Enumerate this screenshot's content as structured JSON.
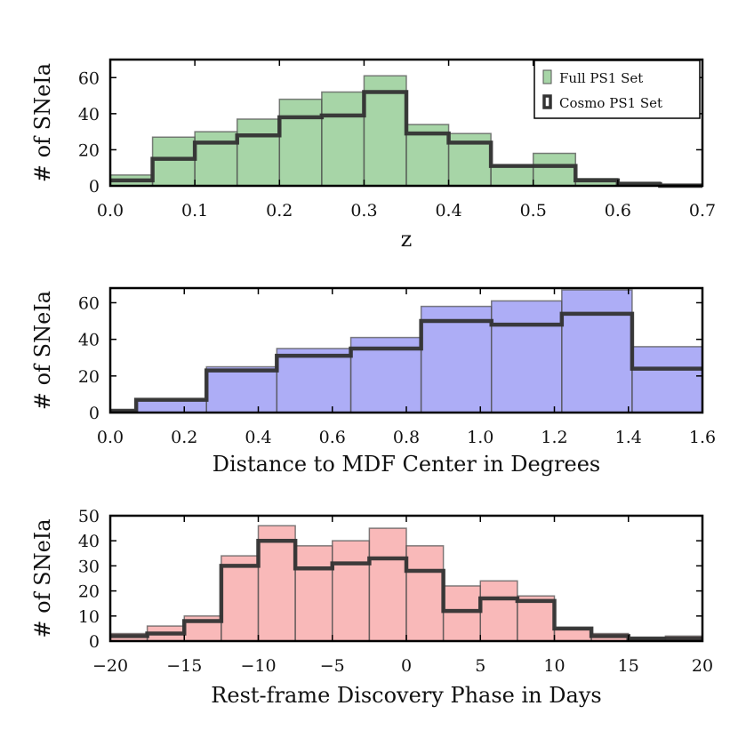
{
  "chart_data": [
    {
      "type": "bar",
      "subtype": "histogram",
      "xlabel": "z",
      "ylabel": "# of SNeIa",
      "xlim": [
        0.0,
        0.7
      ],
      "ylim": [
        0,
        70
      ],
      "xticks": [
        "0.0",
        "0.1",
        "0.2",
        "0.3",
        "0.4",
        "0.5",
        "0.6",
        "0.7"
      ],
      "yticks": [
        "0",
        "20",
        "40",
        "60"
      ],
      "bin_edges": [
        0.0,
        0.05,
        0.1,
        0.15,
        0.2,
        0.25,
        0.3,
        0.35,
        0.4,
        0.45,
        0.5,
        0.55,
        0.6,
        0.65,
        0.7
      ],
      "series": [
        {
          "name": "Full PS1 Set",
          "style": "filled",
          "color": "#5fb35f",
          "values": [
            6,
            27,
            30,
            37,
            48,
            52,
            61,
            34,
            29,
            11,
            18,
            4,
            2,
            1
          ]
        },
        {
          "name": "Cosmo PS1 Set",
          "style": "step",
          "color": "#333333",
          "values": [
            3,
            15,
            24,
            28,
            38,
            39,
            52,
            29,
            24,
            11,
            11,
            3,
            1,
            0
          ]
        }
      ],
      "legend": {
        "position": "top-right",
        "entries": [
          "Full PS1 Set",
          "Cosmo PS1 Set"
        ]
      }
    },
    {
      "type": "bar",
      "subtype": "histogram",
      "xlabel": "Distance to MDF Center in Degrees",
      "ylabel": "# of SNeIa",
      "xlim": [
        0.0,
        1.6
      ],
      "ylim": [
        0,
        68
      ],
      "xticks": [
        "0.0",
        "0.2",
        "0.4",
        "0.6",
        "0.8",
        "1.0",
        "1.2",
        "1.4",
        "1.6"
      ],
      "yticks": [
        "0",
        "20",
        "40",
        "60"
      ],
      "bin_edges": [
        0.0,
        0.07,
        0.26,
        0.45,
        0.65,
        0.84,
        1.03,
        1.22,
        1.41,
        1.6
      ],
      "series": [
        {
          "name": "Full PS1 Set",
          "style": "filled",
          "color": "#6a6aee",
          "values": [
            1,
            7,
            25,
            35,
            41,
            58,
            61,
            67,
            36
          ]
        },
        {
          "name": "Cosmo PS1 Set",
          "style": "step",
          "color": "#333333",
          "values": [
            1,
            7,
            23,
            31,
            35,
            50,
            48,
            54,
            24
          ]
        }
      ]
    },
    {
      "type": "bar",
      "subtype": "histogram",
      "xlabel": "Rest-frame Discovery Phase in Days",
      "ylabel": "# of SNeIa",
      "xlim": [
        -20,
        20
      ],
      "ylim": [
        0,
        50
      ],
      "xticks": [
        "−20",
        "−15",
        "−10",
        "−5",
        "0",
        "5",
        "10",
        "15",
        "20"
      ],
      "yticks": [
        "0",
        "10",
        "20",
        "30",
        "40",
        "50"
      ],
      "bin_edges": [
        -20,
        -17.5,
        -15,
        -12.5,
        -10,
        -7.5,
        -5,
        -2.5,
        0,
        2.5,
        5,
        7.5,
        10,
        12.5,
        15,
        17.5,
        20
      ],
      "series": [
        {
          "name": "Full PS1 Set",
          "style": "filled",
          "color": "#f47f7f",
          "values": [
            3,
            6,
            10,
            34,
            46,
            38,
            40,
            45,
            38,
            22,
            24,
            18,
            5,
            3,
            1,
            2
          ]
        },
        {
          "name": "Cosmo PS1 Set",
          "style": "step",
          "color": "#333333",
          "values": [
            2,
            3,
            8,
            30,
            40,
            29,
            31,
            33,
            28,
            12,
            17,
            16,
            5,
            2,
            1,
            1
          ]
        }
      ]
    }
  ]
}
